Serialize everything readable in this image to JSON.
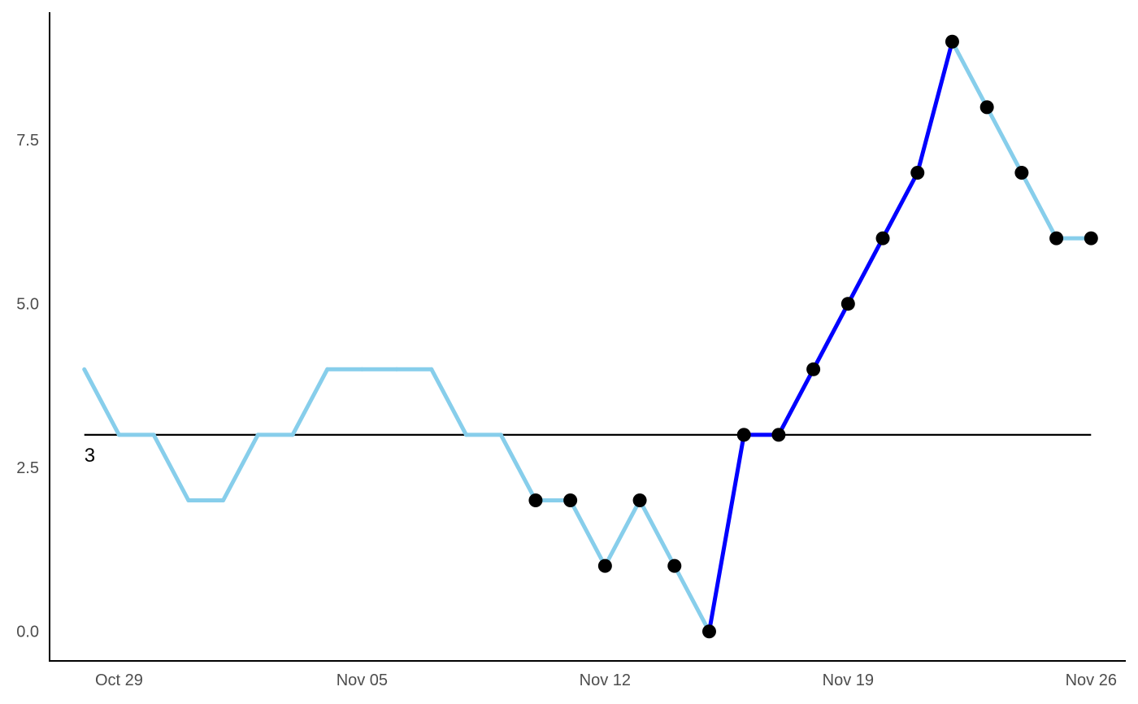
{
  "chart_data": {
    "type": "line",
    "x": [
      "2023-10-28",
      "2023-10-29",
      "2023-10-30",
      "2023-10-31",
      "2023-11-01",
      "2023-11-02",
      "2023-11-03",
      "2023-11-04",
      "2023-11-05",
      "2023-11-06",
      "2023-11-07",
      "2023-11-08",
      "2023-11-09",
      "2023-11-10",
      "2023-11-11",
      "2023-11-12",
      "2023-11-13",
      "2023-11-14",
      "2023-11-15",
      "2023-11-16",
      "2023-11-17",
      "2023-11-18",
      "2023-11-19",
      "2023-11-20",
      "2023-11-21",
      "2023-11-22",
      "2023-11-23",
      "2023-11-24",
      "2023-11-25",
      "2023-11-26"
    ],
    "series": [
      {
        "values": [
          4,
          3,
          3,
          2,
          2,
          3,
          3,
          4,
          4,
          4,
          4,
          3,
          3,
          2,
          2,
          1,
          2,
          1,
          0,
          3,
          3,
          4,
          5,
          6,
          7,
          9,
          8,
          7,
          6,
          6
        ]
      }
    ],
    "markers_from_date": "2023-11-10",
    "highlight_segment": [
      "2023-11-15",
      "2023-11-22"
    ],
    "reference_line": {
      "value": 3,
      "label": "3"
    },
    "x_ticks": [
      {
        "date": "2023-10-29",
        "label": "Oct 29"
      },
      {
        "date": "2023-11-05",
        "label": "Nov 05"
      },
      {
        "date": "2023-11-12",
        "label": "Nov 12"
      },
      {
        "date": "2023-11-19",
        "label": "Nov 19"
      },
      {
        "date": "2023-11-26",
        "label": "Nov 26"
      }
    ],
    "y_ticks": [
      {
        "value": 0,
        "label": "0.0"
      },
      {
        "value": 2.5,
        "label": "2.5"
      },
      {
        "value": 5,
        "label": "5.0"
      },
      {
        "value": 7.5,
        "label": "7.5"
      }
    ],
    "xlim": [
      "2023-10-27",
      "2023-11-27"
    ],
    "ylim": [
      -0.45,
      9.45
    ],
    "grid": false,
    "colors": {
      "line": "#87ceeb",
      "highlight": "#0000ff",
      "marker": "#000000",
      "reference": "#000000",
      "axis": "#000000",
      "tick_text": "#4d4d4d"
    }
  }
}
